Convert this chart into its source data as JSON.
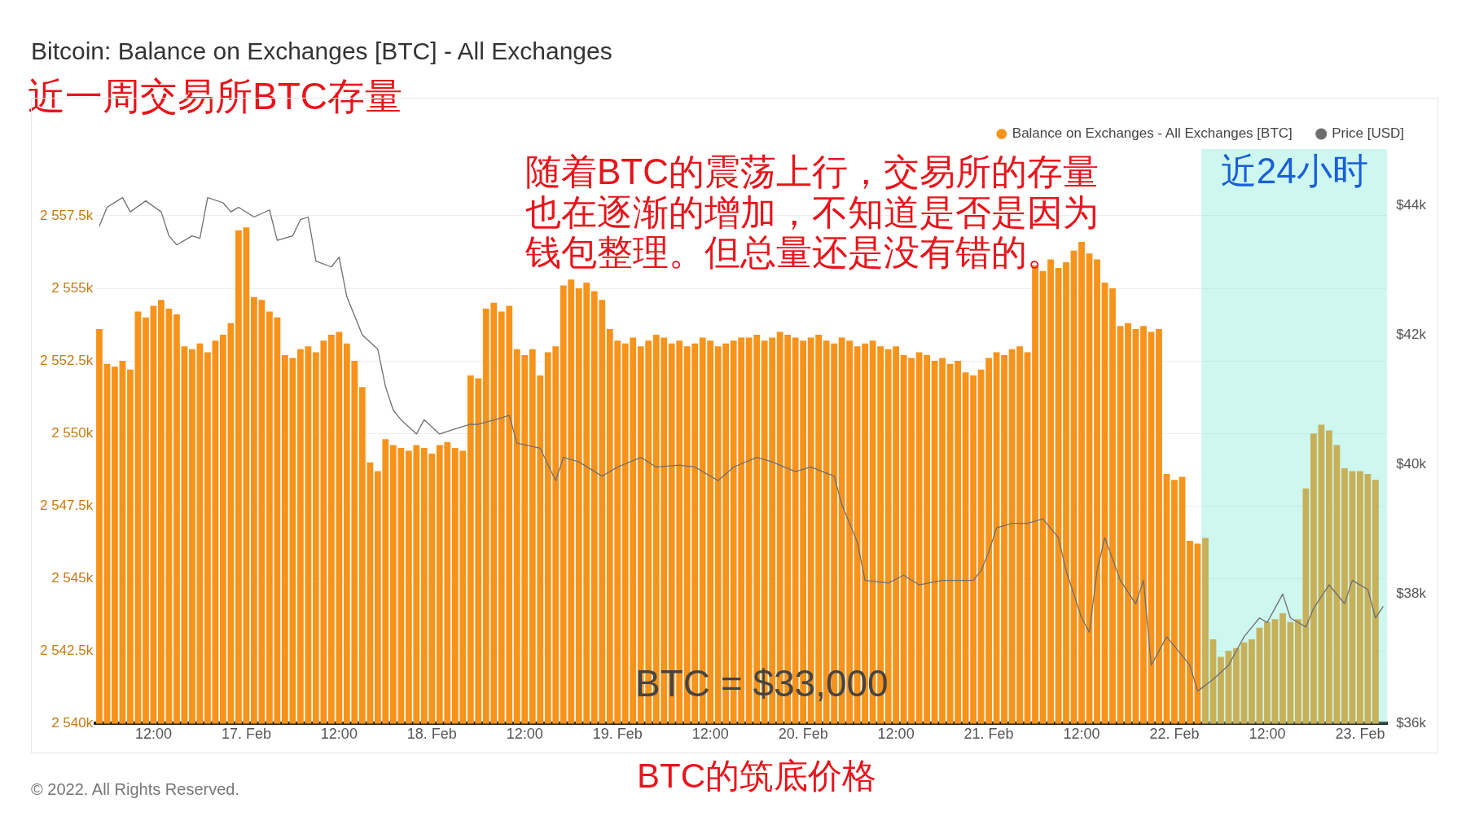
{
  "chart_data": {
    "type": "bar",
    "title": "Bitcoin: Balance on Exchanges [BTC] - All Exchanges",
    "subtitle": "近一周交易所BTC存量",
    "annotations": [
      "随着BTC的震荡上行，交易所的存量也在逐渐的增加，不知道是否是因为钱包整理。但总量还是没有错的。",
      "BTC = $33,000",
      "BTC的筑底价格",
      "© 2022. All Rights Reserved."
    ],
    "series": [
      {
        "name": "Balance on Exchanges - All Exchanges [BTC]",
        "color": "#f7931a",
        "x": [
          "2022-02-16T05:00",
          "2022-02-16T06:00",
          "2022-02-16T07:00",
          "2022-02-16T08:00",
          "2022-02-16T09:00",
          "2022-02-16T10:00",
          "2022-02-16T11:00",
          "2022-02-16T12:00",
          "2022-02-16T13:00",
          "2022-02-16T14:00",
          "2022-02-16T15:00",
          "2022-02-16T16:00",
          "2022-02-16T17:00",
          "2022-02-16T18:00",
          "2022-02-16T19:00",
          "2022-02-16T20:00",
          "2022-02-16T21:00",
          "2022-02-16T22:00",
          "2022-02-16T23:00",
          "2022-02-17T00:00",
          "2022-02-17T01:00",
          "2022-02-17T02:00",
          "2022-02-17T03:00",
          "2022-02-17T04:00",
          "2022-02-17T05:00",
          "2022-02-17T06:00",
          "2022-02-17T07:00",
          "2022-02-17T08:00",
          "2022-02-17T09:00",
          "2022-02-17T10:00",
          "2022-02-17T11:00",
          "2022-02-17T12:00",
          "2022-02-17T13:00",
          "2022-02-17T14:00",
          "2022-02-17T15:00",
          "2022-02-17T16:00",
          "2022-02-17T17:00",
          "2022-02-17T18:00",
          "2022-02-17T19:00",
          "2022-02-17T20:00",
          "2022-02-17T21:00",
          "2022-02-17T22:00",
          "2022-02-17T23:00",
          "2022-02-18T00:00",
          "2022-02-18T01:00",
          "2022-02-18T02:00",
          "2022-02-18T03:00",
          "2022-02-18T04:00",
          "2022-02-18T05:00",
          "2022-02-18T06:00",
          "2022-02-18T07:00",
          "2022-02-18T08:00",
          "2022-02-18T09:00",
          "2022-02-18T10:00",
          "2022-02-18T11:00",
          "2022-02-18T12:00",
          "2022-02-18T13:00",
          "2022-02-18T14:00",
          "2022-02-18T15:00",
          "2022-02-18T16:00",
          "2022-02-18T17:00",
          "2022-02-18T18:00",
          "2022-02-18T19:00",
          "2022-02-18T20:00",
          "2022-02-18T21:00",
          "2022-02-18T22:00",
          "2022-02-18T23:00",
          "2022-02-19T00:00",
          "2022-02-19T01:00",
          "2022-02-19T02:00",
          "2022-02-19T03:00",
          "2022-02-19T04:00",
          "2022-02-19T05:00",
          "2022-02-19T06:00",
          "2022-02-19T07:00",
          "2022-02-19T08:00",
          "2022-02-19T09:00",
          "2022-02-19T10:00",
          "2022-02-19T11:00",
          "2022-02-19T12:00",
          "2022-02-19T13:00",
          "2022-02-19T14:00",
          "2022-02-19T15:00",
          "2022-02-19T16:00",
          "2022-02-19T17:00",
          "2022-02-19T18:00",
          "2022-02-19T19:00",
          "2022-02-19T20:00",
          "2022-02-19T21:00",
          "2022-02-19T22:00",
          "2022-02-19T23:00",
          "2022-02-20T00:00",
          "2022-02-20T01:00",
          "2022-02-20T02:00",
          "2022-02-20T03:00",
          "2022-02-20T04:00",
          "2022-02-20T05:00",
          "2022-02-20T06:00",
          "2022-02-20T07:00",
          "2022-02-20T08:00",
          "2022-02-20T09:00",
          "2022-02-20T10:00",
          "2022-02-20T11:00",
          "2022-02-20T12:00",
          "2022-02-20T13:00",
          "2022-02-20T14:00",
          "2022-02-20T15:00",
          "2022-02-20T16:00",
          "2022-02-20T17:00",
          "2022-02-20T18:00",
          "2022-02-20T19:00",
          "2022-02-20T20:00",
          "2022-02-20T21:00",
          "2022-02-20T22:00",
          "2022-02-20T23:00",
          "2022-02-21T00:00",
          "2022-02-21T01:00",
          "2022-02-21T02:00",
          "2022-02-21T03:00",
          "2022-02-21T04:00",
          "2022-02-21T05:00",
          "2022-02-21T06:00",
          "2022-02-21T07:00",
          "2022-02-21T08:00",
          "2022-02-21T09:00",
          "2022-02-21T10:00",
          "2022-02-21T11:00",
          "2022-02-21T12:00",
          "2022-02-21T13:00",
          "2022-02-21T14:00",
          "2022-02-21T15:00",
          "2022-02-21T16:00",
          "2022-02-21T17:00",
          "2022-02-21T18:00",
          "2022-02-21T19:00",
          "2022-02-21T20:00",
          "2022-02-21T21:00",
          "2022-02-21T22:00",
          "2022-02-21T23:00",
          "2022-02-22T00:00",
          "2022-02-22T01:00",
          "2022-02-22T02:00",
          "2022-02-22T03:00",
          "2022-02-22T04:00",
          "2022-02-22T05:00",
          "2022-02-22T06:00",
          "2022-02-22T07:00",
          "2022-02-22T08:00",
          "2022-02-22T09:00",
          "2022-02-22T10:00",
          "2022-02-22T11:00",
          "2022-02-22T12:00",
          "2022-02-22T13:00",
          "2022-02-22T14:00",
          "2022-02-22T15:00",
          "2022-02-22T16:00",
          "2022-02-22T17:00",
          "2022-02-22T18:00",
          "2022-02-22T19:00",
          "2022-02-22T20:00",
          "2022-02-22T21:00",
          "2022-02-22T22:00",
          "2022-02-22T23:00",
          "2022-02-23T00:00",
          "2022-02-23T01:00",
          "2022-02-23T02:00"
        ],
        "values": [
          2553600,
          2552400,
          2552300,
          2552500,
          2552200,
          2554200,
          2554000,
          2554400,
          2554600,
          2554300,
          2554100,
          2553000,
          2552900,
          2553100,
          2552800,
          2553200,
          2553400,
          2553800,
          2557000,
          2557100,
          2554700,
          2554600,
          2554200,
          2554000,
          2552700,
          2552600,
          2552900,
          2553000,
          2552800,
          2553200,
          2553400,
          2553500,
          2553100,
          2552500,
          2551600,
          2549000,
          2548700,
          2549800,
          2549600,
          2549500,
          2549400,
          2549600,
          2549500,
          2549300,
          2549600,
          2549700,
          2549500,
          2549400,
          2552000,
          2551900,
          2554300,
          2554500,
          2554200,
          2554400,
          2552900,
          2552700,
          2552900,
          2552000,
          2552800,
          2553000,
          2555100,
          2555300,
          2555000,
          2555200,
          2554900,
          2554600,
          2553600,
          2553200,
          2553100,
          2553300,
          2553000,
          2553200,
          2553400,
          2553300,
          2553100,
          2553200,
          2553000,
          2553100,
          2553300,
          2553200,
          2553000,
          2553100,
          2553200,
          2553300,
          2553300,
          2553400,
          2553200,
          2553300,
          2553500,
          2553400,
          2553300,
          2553200,
          2553300,
          2553400,
          2553200,
          2553100,
          2553300,
          2553200,
          2553000,
          2553100,
          2553200,
          2553000,
          2552900,
          2553000,
          2552700,
          2552600,
          2552800,
          2552700,
          2552500,
          2552600,
          2552400,
          2552500,
          2552100,
          2552000,
          2552200,
          2552600,
          2552800,
          2552700,
          2552900,
          2553000,
          2552800,
          2555800,
          2555600,
          2556000,
          2555700,
          2555900,
          2556300,
          2556600,
          2556200,
          2556000,
          2555200,
          2555000,
          2553700,
          2553800,
          2553600,
          2553700,
          2553500,
          2553600,
          2548600,
          2548400,
          2548500,
          2546300,
          2546200,
          2546400,
          2542900,
          2542300,
          2542500,
          2542600,
          2542800,
          2542900,
          2543300,
          2543500,
          2543600,
          2543800,
          2543500,
          2543600,
          2548100,
          2550000,
          2550300,
          2550100,
          2549600,
          2548800,
          2548700,
          2548700,
          2548600,
          2548400
        ]
      },
      {
        "name": "Price [USD]",
        "type": "line",
        "axis": "y2",
        "color": "#6e6e6e",
        "x": [
          "2022-02-16T05:00",
          "2022-02-16T06:00",
          "2022-02-16T08:00",
          "2022-02-16T09:00",
          "2022-02-16T11:00",
          "2022-02-16T13:00",
          "2022-02-16T14:00",
          "2022-02-16T15:00",
          "2022-02-16T17:00",
          "2022-02-16T18:00",
          "2022-02-16T19:00",
          "2022-02-16T21:00",
          "2022-02-16T22:00",
          "2022-02-16T23:00",
          "2022-02-17T01:00",
          "2022-02-17T03:00",
          "2022-02-17T04:00",
          "2022-02-17T06:00",
          "2022-02-17T07:00",
          "2022-02-17T08:00",
          "2022-02-17T09:00",
          "2022-02-17T11:00",
          "2022-02-17T12:00",
          "2022-02-17T13:00",
          "2022-02-17T15:00",
          "2022-02-17T17:00",
          "2022-02-17T18:00",
          "2022-02-17T19:00",
          "2022-02-17T20:00",
          "2022-02-17T22:00",
          "2022-02-17T23:00",
          "2022-02-18T01:00",
          "2022-02-18T03:00",
          "2022-02-18T05:00",
          "2022-02-18T06:00",
          "2022-02-18T09:00",
          "2022-02-18T10:00",
          "2022-02-18T11:00",
          "2022-02-18T14:00",
          "2022-02-18T16:00",
          "2022-02-18T17:00",
          "2022-02-18T19:00",
          "2022-02-18T22:00",
          "2022-02-19T00:00",
          "2022-02-19T03:00",
          "2022-02-19T05:00",
          "2022-02-19T08:00",
          "2022-02-19T10:00",
          "2022-02-19T13:00",
          "2022-02-19T15:00",
          "2022-02-19T18:00",
          "2022-02-19T20:00",
          "2022-02-19T23:00",
          "2022-02-20T01:00",
          "2022-02-20T04:00",
          "2022-02-20T05:00",
          "2022-02-20T07:00",
          "2022-02-20T08:00",
          "2022-02-20T11:00",
          "2022-02-20T13:00",
          "2022-02-20T15:00",
          "2022-02-20T18:00",
          "2022-02-20T20:00",
          "2022-02-20T22:00",
          "2022-02-20T23:00",
          "2022-02-21T00:00",
          "2022-02-21T01:00",
          "2022-02-21T03:00",
          "2022-02-21T05:00",
          "2022-02-21T07:00",
          "2022-02-21T09:00",
          "2022-02-21T10:00",
          "2022-02-21T12:00",
          "2022-02-21T13:00",
          "2022-02-21T14:00",
          "2022-02-21T15:00",
          "2022-02-21T17:00",
          "2022-02-21T19:00",
          "2022-02-21T20:00",
          "2022-02-21T21:00",
          "2022-02-21T23:00",
          "2022-02-22T01:00",
          "2022-02-22T02:00",
          "2022-02-22T03:00",
          "2022-02-22T05:00",
          "2022-02-22T07:00",
          "2022-02-22T09:00",
          "2022-02-22T11:00",
          "2022-02-22T12:00",
          "2022-02-22T14:00",
          "2022-02-22T15:00",
          "2022-02-22T17:00",
          "2022-02-22T18:00",
          "2022-02-22T20:00",
          "2022-02-22T22:00",
          "2022-02-22T23:00",
          "2022-02-23T01:00",
          "2022-02-23T02:00",
          "2022-02-23T03:00"
        ],
        "values": [
          43680,
          43970,
          44120,
          43900,
          44070,
          43900,
          43530,
          43390,
          43530,
          43490,
          44120,
          44040,
          43900,
          43970,
          43820,
          43930,
          43460,
          43530,
          43780,
          43820,
          43140,
          43050,
          43200,
          42590,
          42000,
          41780,
          41200,
          40840,
          40690,
          40470,
          40690,
          40470,
          40550,
          40620,
          40620,
          40720,
          40760,
          40330,
          40250,
          39750,
          40110,
          40040,
          39820,
          39960,
          40110,
          39960,
          39990,
          39960,
          39750,
          39960,
          40110,
          40040,
          39890,
          39960,
          39820,
          39380,
          38800,
          38210,
          38170,
          38290,
          38140,
          38210,
          38210,
          38210,
          38360,
          38650,
          39020,
          39090,
          39090,
          39160,
          38870,
          38360,
          37630,
          37410,
          38360,
          38870,
          38210,
          37850,
          38210,
          36900,
          37340,
          37050,
          36900,
          36500,
          36680,
          36900,
          37340,
          37630,
          37560,
          38000,
          37630,
          37490,
          37780,
          38140,
          37850,
          38210,
          38070,
          37630,
          37810
        ]
      }
    ],
    "xlim": [
      "2022-02-16T04:30",
      "2022-02-23T03:30"
    ],
    "xticks": [
      {
        "value": "2022-02-16T12:00",
        "label": "12:00"
      },
      {
        "value": "2022-02-17T00:00",
        "label": "17. Feb"
      },
      {
        "value": "2022-02-17T12:00",
        "label": "12:00"
      },
      {
        "value": "2022-02-18T00:00",
        "label": "18. Feb"
      },
      {
        "value": "2022-02-18T12:00",
        "label": "12:00"
      },
      {
        "value": "2022-02-19T00:00",
        "label": "19. Feb"
      },
      {
        "value": "2022-02-19T12:00",
        "label": "12:00"
      },
      {
        "value": "2022-02-20T00:00",
        "label": "20. Feb"
      },
      {
        "value": "2022-02-20T12:00",
        "label": "12:00"
      },
      {
        "value": "2022-02-21T00:00",
        "label": "21. Feb"
      },
      {
        "value": "2022-02-21T12:00",
        "label": "12:00"
      },
      {
        "value": "2022-02-22T00:00",
        "label": "22. Feb"
      },
      {
        "value": "2022-02-22T12:00",
        "label": "12:00"
      },
      {
        "value": "2022-02-23T00:00",
        "label": "23. Feb"
      }
    ],
    "ylim": [
      2540000,
      2559800
    ],
    "yticks": [
      {
        "value": 2540000,
        "label": "2 540k"
      },
      {
        "value": 2542500,
        "label": "2 542.5k"
      },
      {
        "value": 2545000,
        "label": "2 545k"
      },
      {
        "value": 2547500,
        "label": "2 547.5k"
      },
      {
        "value": 2550000,
        "label": "2 550k"
      },
      {
        "value": 2552500,
        "label": "2 552.5k"
      },
      {
        "value": 2555000,
        "label": "2 555k"
      },
      {
        "value": 2557500,
        "label": "2 557.5k"
      }
    ],
    "y2lim": [
      36000,
      44870
    ],
    "y2ticks": [
      {
        "value": 36000,
        "label": "$36k"
      },
      {
        "value": 38000,
        "label": "$38k"
      },
      {
        "value": 40000,
        "label": "$40k"
      },
      {
        "value": 42000,
        "label": "$42k"
      },
      {
        "value": 44000,
        "label": "$44k"
      }
    ],
    "bands": [
      {
        "axis": "x",
        "from": "2022-02-22T03:30",
        "to": "2022-02-23T03:30",
        "label": "近24小时",
        "color": "#6fe8d0"
      }
    ],
    "grid": "y",
    "legend": "top right",
    "marker": "none"
  }
}
